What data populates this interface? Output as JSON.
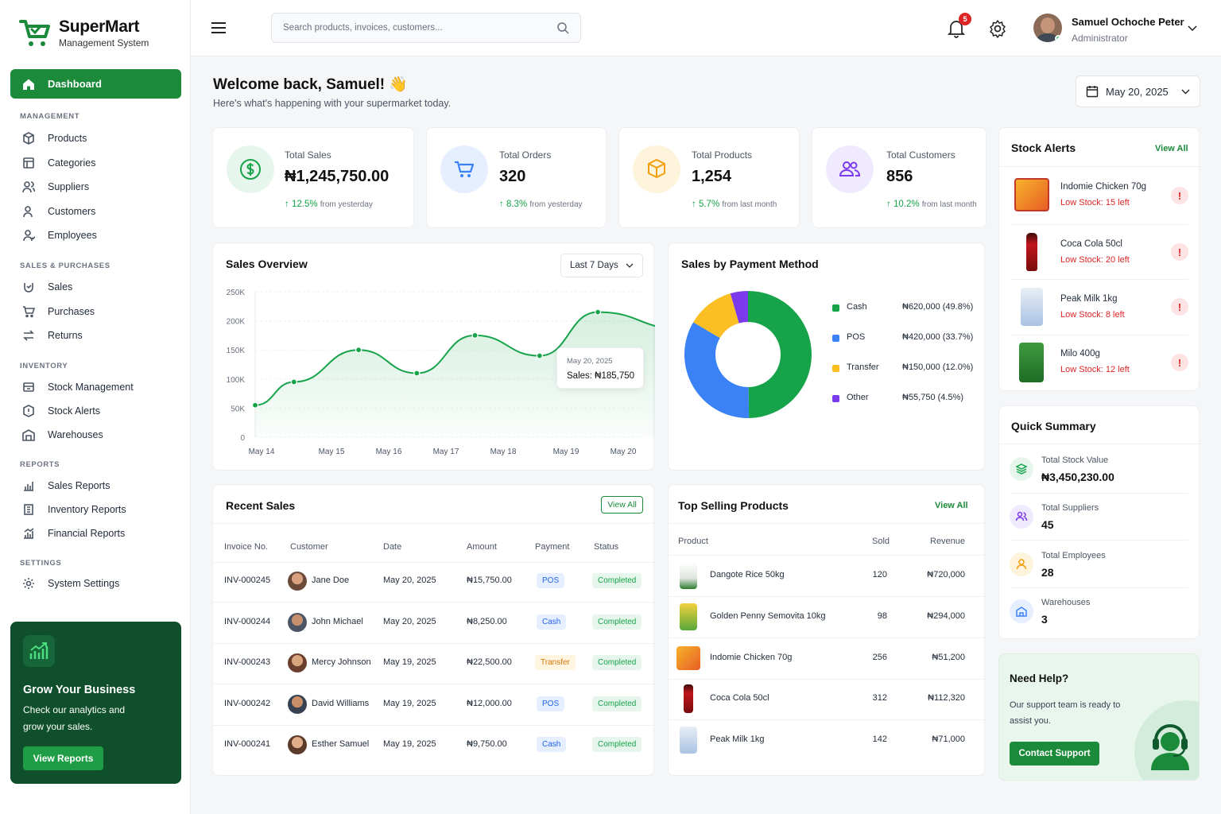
{
  "app": {
    "name": "SuperMart",
    "subtitle": "Management System"
  },
  "sidebar": {
    "active": "Dashboard",
    "sections": {
      "management": "MANAGEMENT",
      "sales_purchases": "SALES & PURCHASES",
      "inventory": "INVENTORY",
      "reports": "REPORTS",
      "settings": "SETTINGS"
    },
    "items": {
      "products": "Products",
      "categories": "Categories",
      "suppliers": "Suppliers",
      "customers": "Customers",
      "employees": "Employees",
      "sales": "Sales",
      "purchases": "Purchases",
      "returns": "Returns",
      "stock_management": "Stock Management",
      "stock_alerts": "Stock Alerts",
      "warehouses": "Warehouses",
      "sales_reports": "Sales Reports",
      "inventory_reports": "Inventory Reports",
      "financial_reports": "Financial Reports",
      "system_settings": "System Settings"
    },
    "promo": {
      "title": "Grow Your Business",
      "text": "Check our analytics and grow your sales.",
      "button": "View Reports"
    }
  },
  "topbar": {
    "search_placeholder": "Search products, invoices, customers...",
    "notifications": "5",
    "user_name": "Samuel Ochoche Peter",
    "user_role": "Administrator"
  },
  "header": {
    "title": "Welcome back, Samuel!",
    "emoji": "👋",
    "subtitle": "Here's what's happening with your supermarket today.",
    "date": "May 20, 2025"
  },
  "kpis": [
    {
      "label": "Total Sales",
      "value": "₦1,245,750.00",
      "change": "12.5%",
      "period": "from yesterday"
    },
    {
      "label": "Total Orders",
      "value": "320",
      "change": "8.3%",
      "period": "from yesterday"
    },
    {
      "label": "Total Products",
      "value": "1,254",
      "change": "5.7%",
      "period": "from last month"
    },
    {
      "label": "Total Customers",
      "value": "856",
      "change": "10.2%",
      "period": "from last month"
    }
  ],
  "sales_overview": {
    "title": "Sales Overview",
    "range": "Last 7 Days",
    "tooltip_date": "May 20, 2025",
    "tooltip_label": "Sales:",
    "tooltip_value": "₦185,750"
  },
  "chart_data": [
    {
      "type": "area",
      "title": "Sales Overview",
      "x_ticks": [
        "May 14",
        "May 15",
        "May 16",
        "May 17",
        "May 18",
        "May 19",
        "May 20"
      ],
      "y_ticks": [
        "250K",
        "200K",
        "150K",
        "100K",
        "50K",
        "0"
      ],
      "ylim": [
        0,
        250000
      ],
      "x": [
        0,
        0.6,
        1.6,
        2.5,
        3.4,
        4.4,
        5.3,
        6.6,
        7
      ],
      "values": [
        55000,
        95000,
        150000,
        110000,
        175000,
        140000,
        215000,
        185750,
        185750
      ],
      "color": "#16a34a"
    },
    {
      "type": "pie",
      "title": "Sales by Payment Method",
      "labels": [
        "Cash",
        "POS",
        "Transfer",
        "Other"
      ],
      "values": [
        620000,
        420000,
        150000,
        55750
      ],
      "display": [
        "₦620,000 (49.8%)",
        "₦420,000 (33.7%)",
        "₦150,000 (12.0%)",
        "₦55,750 (4.5%)"
      ],
      "colors": [
        "#16a34a",
        "#3b82f6",
        "#fbbf24",
        "#7c3aed"
      ]
    }
  ],
  "stock_alerts": {
    "title": "Stock Alerts",
    "view_all": "View All",
    "items": [
      {
        "name": "Indomie Chicken 70g",
        "status": "Low Stock: 15 left"
      },
      {
        "name": "Coca Cola 50cl",
        "status": "Low Stock: 20 left"
      },
      {
        "name": "Peak Milk 1kg",
        "status": "Low Stock: 8 left"
      },
      {
        "name": "Milo 400g",
        "status": "Low Stock: 12 left"
      }
    ]
  },
  "quick_summary": {
    "title": "Quick Summary",
    "items": [
      {
        "label": "Total Stock Value",
        "value": "₦3,450,230.00"
      },
      {
        "label": "Total Suppliers",
        "value": "45"
      },
      {
        "label": "Total Employees",
        "value": "28"
      },
      {
        "label": "Warehouses",
        "value": "3"
      }
    ]
  },
  "help": {
    "title": "Need Help?",
    "text": "Our support team is ready to assist you.",
    "button": "Contact Support"
  },
  "recent_sales": {
    "title": "Recent Sales",
    "view_all": "View All",
    "columns": [
      "Invoice No.",
      "Customer",
      "Date",
      "Amount",
      "Payment",
      "Status"
    ],
    "rows": [
      {
        "invoice": "INV-000245",
        "customer": "Jane Doe",
        "date": "May 20, 2025",
        "amount": "₦15,750.00",
        "payment": "POS",
        "status": "Completed"
      },
      {
        "invoice": "INV-000244",
        "customer": "John Michael",
        "date": "May 20, 2025",
        "amount": "₦8,250.00",
        "payment": "Cash",
        "status": "Completed"
      },
      {
        "invoice": "INV-000243",
        "customer": "Mercy Johnson",
        "date": "May 19, 2025",
        "amount": "₦22,500.00",
        "payment": "Transfer",
        "status": "Completed"
      },
      {
        "invoice": "INV-000242",
        "customer": "David Williams",
        "date": "May 19, 2025",
        "amount": "₦12,000.00",
        "payment": "POS",
        "status": "Completed"
      },
      {
        "invoice": "INV-000241",
        "customer": "Esther Samuel",
        "date": "May 19, 2025",
        "amount": "₦9,750.00",
        "payment": "Cash",
        "status": "Completed"
      }
    ]
  },
  "top_products": {
    "title": "Top Selling Products",
    "view_all": "View All",
    "columns": [
      "Product",
      "Sold",
      "Revenue"
    ],
    "rows": [
      {
        "name": "Dangote Rice 50kg",
        "sold": "120",
        "revenue": "₦720,000"
      },
      {
        "name": "Golden Penny Semovita 10kg",
        "sold": "98",
        "revenue": "₦294,000"
      },
      {
        "name": "Indomie Chicken 70g",
        "sold": "256",
        "revenue": "₦51,200"
      },
      {
        "name": "Coca Cola 50cl",
        "sold": "312",
        "revenue": "₦112,320"
      },
      {
        "name": "Peak Milk 1kg",
        "sold": "142",
        "revenue": "₦71,000"
      }
    ]
  }
}
